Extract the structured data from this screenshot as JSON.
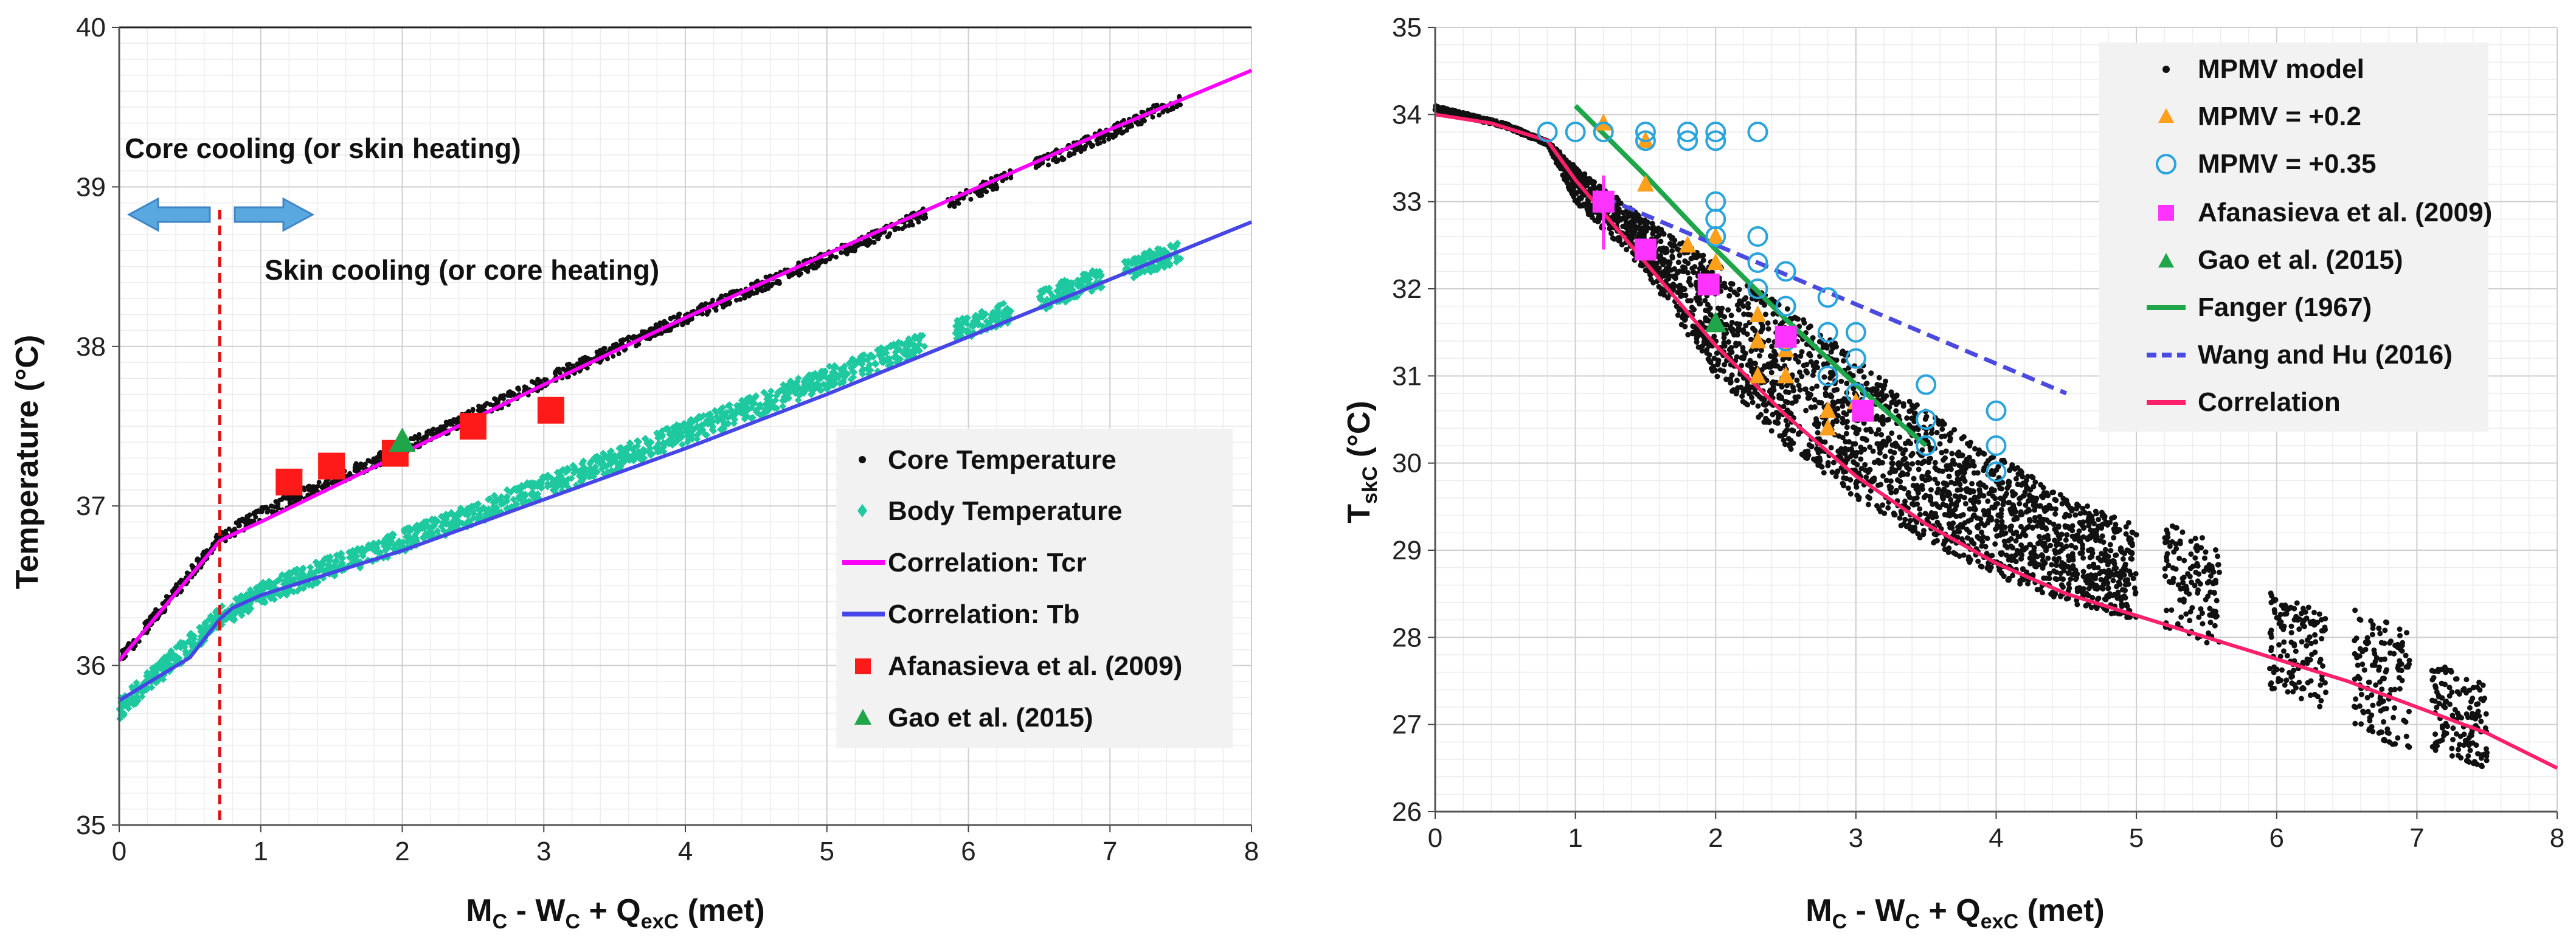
{
  "colors": {
    "core": "#111111",
    "body": "#1fc9a0",
    "tcr_line": "#ff00ff",
    "tb_line": "#4646e6",
    "afanasieva": "#ff1a1a",
    "afanasieva_right": "#ff33ff",
    "gao": "#1fa54a",
    "mpmv02": "#ff9f1a",
    "mpmv035": "#2aa4dc",
    "fanger": "#1fa54a",
    "wang": "#4a4ae0",
    "correlation_right": "#ff1f6a",
    "divider": "#e01010",
    "arrow": "#5aa8e0",
    "legend_bg": "#f2f2f2"
  },
  "chart_data": [
    {
      "type": "scatter",
      "id": "left",
      "xlabel": "M",
      "xlabel_parts": {
        "m": "M",
        "m_sub": "C",
        "w": " - W",
        "w_sub": "C",
        "q": " + Q",
        "q_sub": "exC",
        "unit": " (met)"
      },
      "ylabel": "Temperature (°C)",
      "xlim": [
        0,
        8
      ],
      "ylim": [
        35,
        40
      ],
      "x_ticks": [
        "0",
        "1",
        "2",
        "3",
        "4",
        "5",
        "6",
        "7",
        "8"
      ],
      "y_ticks": [
        "35",
        "36",
        "37",
        "38",
        "39",
        "40"
      ],
      "annotations": {
        "core_cooling": "Core cooling (or skin heating)",
        "skin_cooling": "Skin cooling (or core heating)",
        "divider_x": 0.71
      },
      "series": [
        {
          "name": "Core Temperature",
          "kind": "band",
          "x": [
            0,
            0.71,
            1,
            2,
            3,
            4,
            5,
            6,
            7,
            7.5
          ],
          "y": [
            36.03,
            36.8,
            36.95,
            37.36,
            37.78,
            38.18,
            38.56,
            38.95,
            39.34,
            39.55
          ],
          "spread": 0.04
        },
        {
          "name": "Body Temperature",
          "kind": "band",
          "x": [
            0,
            0.71,
            1,
            2,
            3,
            4,
            5,
            6,
            7,
            7.5
          ],
          "y": [
            35.73,
            36.3,
            36.45,
            36.78,
            37.12,
            37.46,
            37.8,
            38.12,
            38.45,
            38.6
          ],
          "spread": 0.07
        },
        {
          "name": "Correlation: Tcr",
          "kind": "line",
          "x": [
            0,
            0.71,
            0.75,
            1,
            2,
            3,
            4,
            5,
            6,
            7,
            8
          ],
          "y": [
            36.03,
            36.78,
            36.8,
            36.9,
            37.33,
            37.76,
            38.18,
            38.58,
            38.97,
            39.36,
            39.73
          ]
        },
        {
          "name": "Correlation: Tb",
          "kind": "line",
          "x": [
            0,
            0.5,
            0.71,
            0.8,
            1,
            1.5,
            2,
            3,
            4,
            5,
            6,
            7,
            8
          ],
          "y": [
            35.78,
            36.05,
            36.29,
            36.36,
            36.44,
            36.58,
            36.72,
            37.04,
            37.36,
            37.7,
            38.06,
            38.42,
            38.78
          ]
        },
        {
          "name": "Afanasieva et al. (2009)",
          "kind": "square",
          "x": [
            1.2,
            1.5,
            1.95,
            2.5,
            3.05
          ],
          "y": [
            37.15,
            37.25,
            37.33,
            37.5,
            37.6
          ]
        },
        {
          "name": "Gao et al. (2015)",
          "kind": "triangle",
          "x": [
            2.0
          ],
          "y": [
            37.4
          ]
        }
      ],
      "legend": [
        "Core Temperature",
        "Body Temperature",
        "Correlation: Tcr",
        "Correlation: Tb",
        "Afanasieva et al. (2009)",
        "Gao et al. (2015)"
      ]
    },
    {
      "type": "scatter",
      "id": "right",
      "xlabel": "M",
      "xlabel_parts": {
        "m": "M",
        "m_sub": "C",
        "w": " - W",
        "w_sub": "C",
        "q": " + Q",
        "q_sub": "exC",
        "unit": " (met)"
      },
      "ylabel": "T",
      "ylabel_parts": {
        "t": "T",
        "t_sub": "skC",
        "unit": " (°C)"
      },
      "xlim": [
        0,
        8
      ],
      "ylim": [
        26,
        35
      ],
      "x_ticks": [
        "0",
        "1",
        "2",
        "3",
        "4",
        "5",
        "6",
        "7",
        "8"
      ],
      "y_ticks": [
        "26",
        "27",
        "28",
        "29",
        "30",
        "31",
        "32",
        "33",
        "34",
        "35"
      ],
      "series": [
        {
          "name": "MPMV model",
          "kind": "cloud",
          "x": [
            0,
            0.5,
            0.8,
            1,
            1.5,
            2,
            2.5,
            3,
            3.5,
            4,
            4.5,
            5
          ],
          "y_top": [
            34.1,
            33.9,
            33.7,
            33.4,
            32.8,
            32.3,
            31.8,
            31.2,
            30.6,
            30.1,
            29.6,
            29.3
          ],
          "y_bottom": [
            34.05,
            33.85,
            33.65,
            33.0,
            32.2,
            31.0,
            30.2,
            29.6,
            29.1,
            28.7,
            28.4,
            28.2
          ],
          "clusters": [
            {
              "x": 5.4,
              "y_top": 29.2,
              "y_bottom": 28.0
            },
            {
              "x": 6.15,
              "y_top": 28.4,
              "y_bottom": 27.3
            },
            {
              "x": 6.75,
              "y_top": 28.2,
              "y_bottom": 26.8
            },
            {
              "x": 7.3,
              "y_top": 27.6,
              "y_bottom": 26.6
            }
          ]
        },
        {
          "name": "MPMV = +0.2",
          "kind": "triangle",
          "x": [
            1.2,
            1.5,
            1.5,
            1.8,
            2.0,
            2.0,
            2.3,
            2.3,
            2.3,
            2.5,
            2.5,
            2.8,
            2.8,
            3.0
          ],
          "y": [
            33.9,
            33.7,
            33.2,
            32.5,
            32.6,
            32.3,
            31.7,
            31.4,
            31.0,
            31.3,
            31.0,
            30.6,
            30.4,
            30.7
          ]
        },
        {
          "name": "MPMV = +0.35",
          "kind": "ring",
          "x": [
            0.8,
            1.0,
            1.2,
            1.5,
            1.5,
            1.8,
            1.8,
            2.0,
            2.0,
            2.0,
            2.0,
            2.0,
            2.3,
            2.3,
            2.3,
            2.3,
            2.5,
            2.5,
            2.5,
            2.8,
            2.8,
            2.8,
            3.0,
            3.0,
            3.0,
            3.5,
            3.5,
            3.5,
            4.0,
            4.0,
            4.0
          ],
          "y": [
            33.8,
            33.8,
            33.8,
            33.8,
            33.7,
            33.8,
            33.7,
            33.8,
            33.7,
            33.0,
            32.8,
            32.6,
            33.8,
            32.6,
            32.3,
            32.0,
            32.2,
            31.8,
            31.4,
            31.9,
            31.5,
            31.0,
            31.5,
            31.2,
            30.8,
            30.9,
            30.5,
            30.2,
            30.6,
            30.2,
            29.9
          ]
        },
        {
          "name": "Afanasieva et al. (2009)",
          "kind": "square",
          "x": [
            1.2,
            1.5,
            1.95,
            2.5,
            3.05
          ],
          "y": [
            33.0,
            32.45,
            32.05,
            31.45,
            30.6
          ],
          "errorbar": {
            "x": 1.2,
            "low": 32.45,
            "high": 33.3
          }
        },
        {
          "name": "Gao et al. (2015)",
          "kind": "triangle",
          "x": [
            2.0
          ],
          "y": [
            31.6
          ]
        },
        {
          "name": "Fanger (1967)",
          "kind": "line",
          "x": [
            1.0,
            1.5,
            2.0,
            2.5,
            3.0,
            3.5
          ],
          "y": [
            34.1,
            33.3,
            32.45,
            31.65,
            30.9,
            30.2
          ]
        },
        {
          "name": "Wang and Hu (2016)",
          "kind": "dashed",
          "x": [
            1.2,
            4.5
          ],
          "y": [
            33.05,
            30.8
          ]
        },
        {
          "name": "Correlation",
          "kind": "line",
          "x": [
            0,
            0.4,
            0.8,
            1.0,
            1.5,
            2.0,
            2.5,
            3.0,
            3.5,
            4.0,
            4.5,
            5.0,
            5.5,
            6.0,
            6.5,
            7.0,
            7.5,
            8.0
          ],
          "y": [
            34.0,
            33.9,
            33.7,
            33.25,
            32.3,
            31.35,
            30.55,
            29.85,
            29.3,
            28.85,
            28.5,
            28.25,
            28.0,
            27.75,
            27.5,
            27.2,
            26.9,
            26.5
          ]
        }
      ],
      "legend": [
        "MPMV model",
        "MPMV = +0.2",
        "MPMV = +0.35",
        "Afanasieva et al. (2009)",
        "Gao et al. (2015)",
        "Fanger (1967)",
        "Wang and Hu (2016)",
        "Correlation"
      ]
    }
  ]
}
